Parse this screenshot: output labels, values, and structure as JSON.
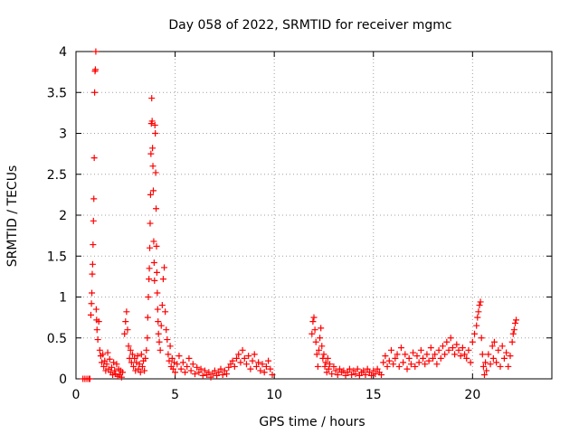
{
  "chart_data": {
    "type": "scatter",
    "title": "Day 058 of 2022, SRMTID for receiver mgmc",
    "xlabel": "GPS time / hours",
    "ylabel": "SRMTID / TECUs",
    "xlim": [
      0,
      24
    ],
    "ylim": [
      0,
      4
    ],
    "xticks": [
      0,
      5,
      10,
      15,
      20
    ],
    "yticks": [
      0,
      0.5,
      1,
      1.5,
      2,
      2.5,
      3,
      3.5,
      4
    ],
    "ytick_labels": [
      "0",
      "0.5",
      "1",
      "1.5",
      "2",
      "2.5",
      "3",
      "3.5",
      "4"
    ],
    "grid": true,
    "marker": "plus",
    "series": [
      {
        "name": "SRMTID",
        "color": "#ff0000",
        "points": [
          [
            0.35,
            0.0
          ],
          [
            0.45,
            0.0
          ],
          [
            0.55,
            0.0
          ],
          [
            0.65,
            0.0
          ],
          [
            0.7,
            0.0
          ],
          [
            0.75,
            0.78
          ],
          [
            0.78,
            0.92
          ],
          [
            0.8,
            1.05
          ],
          [
            0.82,
            1.28
          ],
          [
            0.84,
            1.4
          ],
          [
            0.86,
            1.64
          ],
          [
            0.88,
            1.93
          ],
          [
            0.9,
            2.2
          ],
          [
            0.92,
            2.7
          ],
          [
            0.94,
            3.5
          ],
          [
            0.96,
            3.76
          ],
          [
            0.98,
            3.78
          ],
          [
            1.0,
            4.0
          ],
          [
            1.02,
            0.85
          ],
          [
            1.04,
            0.72
          ],
          [
            1.06,
            0.6
          ],
          [
            1.1,
            0.48
          ],
          [
            1.15,
            0.7
          ],
          [
            1.2,
            0.35
          ],
          [
            1.25,
            0.28
          ],
          [
            1.3,
            0.2
          ],
          [
            1.35,
            0.3
          ],
          [
            1.4,
            0.15
          ],
          [
            1.45,
            0.22
          ],
          [
            1.5,
            0.1
          ],
          [
            1.55,
            0.18
          ],
          [
            1.6,
            0.32
          ],
          [
            1.65,
            0.12
          ],
          [
            1.7,
            0.24
          ],
          [
            1.75,
            0.08
          ],
          [
            1.8,
            0.14
          ],
          [
            1.85,
            0.05
          ],
          [
            1.9,
            0.2
          ],
          [
            1.95,
            0.1
          ],
          [
            2.0,
            0.06
          ],
          [
            2.05,
            0.18
          ],
          [
            2.1,
            0.03
          ],
          [
            2.15,
            0.12
          ],
          [
            2.2,
            0.05
          ],
          [
            2.25,
            0.1
          ],
          [
            2.3,
            0.02
          ],
          [
            2.35,
            0.08
          ],
          [
            2.45,
            0.55
          ],
          [
            2.5,
            0.7
          ],
          [
            2.55,
            0.82
          ],
          [
            2.6,
            0.6
          ],
          [
            2.65,
            0.4
          ],
          [
            2.7,
            0.25
          ],
          [
            2.75,
            0.35
          ],
          [
            2.8,
            0.2
          ],
          [
            2.85,
            0.3
          ],
          [
            2.9,
            0.15
          ],
          [
            2.95,
            0.25
          ],
          [
            3.0,
            0.1
          ],
          [
            3.05,
            0.2
          ],
          [
            3.1,
            0.28
          ],
          [
            3.15,
            0.12
          ],
          [
            3.2,
            0.18
          ],
          [
            3.25,
            0.08
          ],
          [
            3.3,
            0.3
          ],
          [
            3.35,
            0.15
          ],
          [
            3.4,
            0.22
          ],
          [
            3.45,
            0.1
          ],
          [
            3.5,
            0.25
          ],
          [
            3.55,
            0.35
          ],
          [
            3.6,
            0.5
          ],
          [
            3.62,
            0.75
          ],
          [
            3.65,
            1.0
          ],
          [
            3.68,
            1.22
          ],
          [
            3.7,
            1.35
          ],
          [
            3.72,
            1.6
          ],
          [
            3.74,
            1.9
          ],
          [
            3.76,
            2.25
          ],
          [
            3.78,
            2.75
          ],
          [
            3.8,
            3.12
          ],
          [
            3.82,
            3.43
          ],
          [
            3.84,
            3.15
          ],
          [
            3.86,
            2.82
          ],
          [
            3.88,
            2.6
          ],
          [
            3.9,
            2.3
          ],
          [
            3.92,
            1.68
          ],
          [
            3.94,
            1.42
          ],
          [
            3.96,
            1.2
          ],
          [
            3.98,
            3.1
          ],
          [
            4.0,
            3.0
          ],
          [
            4.02,
            2.52
          ],
          [
            4.04,
            2.08
          ],
          [
            4.06,
            1.62
          ],
          [
            4.08,
            1.3
          ],
          [
            4.1,
            1.05
          ],
          [
            4.12,
            0.85
          ],
          [
            4.14,
            0.7
          ],
          [
            4.16,
            0.55
          ],
          [
            4.2,
            0.45
          ],
          [
            4.25,
            0.35
          ],
          [
            4.3,
            0.65
          ],
          [
            4.35,
            0.9
          ],
          [
            4.4,
            1.22
          ],
          [
            4.45,
            1.36
          ],
          [
            4.5,
            0.82
          ],
          [
            4.55,
            0.6
          ],
          [
            4.6,
            0.48
          ],
          [
            4.65,
            0.3
          ],
          [
            4.7,
            0.22
          ],
          [
            4.75,
            0.4
          ],
          [
            4.8,
            0.15
          ],
          [
            4.85,
            0.25
          ],
          [
            4.9,
            0.12
          ],
          [
            4.95,
            0.2
          ],
          [
            5.0,
            0.08
          ],
          [
            5.1,
            0.18
          ],
          [
            5.2,
            0.28
          ],
          [
            5.3,
            0.12
          ],
          [
            5.4,
            0.2
          ],
          [
            5.5,
            0.08
          ],
          [
            5.6,
            0.15
          ],
          [
            5.7,
            0.25
          ],
          [
            5.8,
            0.1
          ],
          [
            5.9,
            0.18
          ],
          [
            6.0,
            0.06
          ],
          [
            6.1,
            0.14
          ],
          [
            6.2,
            0.08
          ],
          [
            6.3,
            0.12
          ],
          [
            6.4,
            0.04
          ],
          [
            6.5,
            0.1
          ],
          [
            6.6,
            0.05
          ],
          [
            6.7,
            0.08
          ],
          [
            6.8,
            0.02
          ],
          [
            6.9,
            0.06
          ],
          [
            7.0,
            0.1
          ],
          [
            7.1,
            0.04
          ],
          [
            7.2,
            0.08
          ],
          [
            7.3,
            0.12
          ],
          [
            7.4,
            0.05
          ],
          [
            7.5,
            0.1
          ],
          [
            7.6,
            0.06
          ],
          [
            7.7,
            0.14
          ],
          [
            7.8,
            0.18
          ],
          [
            7.9,
            0.22
          ],
          [
            8.0,
            0.15
          ],
          [
            8.1,
            0.25
          ],
          [
            8.2,
            0.3
          ],
          [
            8.3,
            0.2
          ],
          [
            8.4,
            0.35
          ],
          [
            8.5,
            0.25
          ],
          [
            8.6,
            0.18
          ],
          [
            8.7,
            0.28
          ],
          [
            8.8,
            0.12
          ],
          [
            8.9,
            0.22
          ],
          [
            9.0,
            0.3
          ],
          [
            9.1,
            0.15
          ],
          [
            9.2,
            0.2
          ],
          [
            9.3,
            0.1
          ],
          [
            9.4,
            0.18
          ],
          [
            9.5,
            0.08
          ],
          [
            9.6,
            0.15
          ],
          [
            9.7,
            0.22
          ],
          [
            9.8,
            0.12
          ],
          [
            9.9,
            0.05
          ],
          [
            11.9,
            0.55
          ],
          [
            11.95,
            0.7
          ],
          [
            12.0,
            0.75
          ],
          [
            12.05,
            0.6
          ],
          [
            12.1,
            0.45
          ],
          [
            12.15,
            0.3
          ],
          [
            12.2,
            0.15
          ],
          [
            12.25,
            0.35
          ],
          [
            12.3,
            0.5
          ],
          [
            12.35,
            0.62
          ],
          [
            12.4,
            0.4
          ],
          [
            12.45,
            0.25
          ],
          [
            12.5,
            0.3
          ],
          [
            12.55,
            0.15
          ],
          [
            12.6,
            0.2
          ],
          [
            12.65,
            0.08
          ],
          [
            12.7,
            0.25
          ],
          [
            12.75,
            0.12
          ],
          [
            12.8,
            0.18
          ],
          [
            12.9,
            0.06
          ],
          [
            13.0,
            0.15
          ],
          [
            13.1,
            0.1
          ],
          [
            13.2,
            0.05
          ],
          [
            13.3,
            0.12
          ],
          [
            13.4,
            0.08
          ],
          [
            13.5,
            0.1
          ],
          [
            13.6,
            0.04
          ],
          [
            13.7,
            0.08
          ],
          [
            13.8,
            0.12
          ],
          [
            13.9,
            0.05
          ],
          [
            14.0,
            0.1
          ],
          [
            14.1,
            0.06
          ],
          [
            14.2,
            0.12
          ],
          [
            14.3,
            0.04
          ],
          [
            14.4,
            0.08
          ],
          [
            14.5,
            0.1
          ],
          [
            14.6,
            0.05
          ],
          [
            14.7,
            0.12
          ],
          [
            14.8,
            0.08
          ],
          [
            14.9,
            0.04
          ],
          [
            15.0,
            0.1
          ],
          [
            15.1,
            0.06
          ],
          [
            15.2,
            0.12
          ],
          [
            15.3,
            0.08
          ],
          [
            15.4,
            0.05
          ],
          [
            15.5,
            0.2
          ],
          [
            15.6,
            0.28
          ],
          [
            15.7,
            0.15
          ],
          [
            15.8,
            0.22
          ],
          [
            15.9,
            0.35
          ],
          [
            16.0,
            0.18
          ],
          [
            16.1,
            0.25
          ],
          [
            16.2,
            0.3
          ],
          [
            16.3,
            0.15
          ],
          [
            16.4,
            0.38
          ],
          [
            16.5,
            0.2
          ],
          [
            16.6,
            0.3
          ],
          [
            16.7,
            0.12
          ],
          [
            16.8,
            0.25
          ],
          [
            16.9,
            0.18
          ],
          [
            17.0,
            0.32
          ],
          [
            17.1,
            0.15
          ],
          [
            17.2,
            0.28
          ],
          [
            17.3,
            0.2
          ],
          [
            17.4,
            0.35
          ],
          [
            17.5,
            0.25
          ],
          [
            17.6,
            0.18
          ],
          [
            17.7,
            0.3
          ],
          [
            17.8,
            0.22
          ],
          [
            17.9,
            0.38
          ],
          [
            18.0,
            0.25
          ],
          [
            18.1,
            0.3
          ],
          [
            18.2,
            0.18
          ],
          [
            18.3,
            0.35
          ],
          [
            18.4,
            0.25
          ],
          [
            18.5,
            0.4
          ],
          [
            18.6,
            0.3
          ],
          [
            18.7,
            0.45
          ],
          [
            18.8,
            0.35
          ],
          [
            18.9,
            0.5
          ],
          [
            19.0,
            0.38
          ],
          [
            19.1,
            0.3
          ],
          [
            19.2,
            0.42
          ],
          [
            19.3,
            0.35
          ],
          [
            19.4,
            0.28
          ],
          [
            19.5,
            0.38
          ],
          [
            19.6,
            0.3
          ],
          [
            19.7,
            0.25
          ],
          [
            19.8,
            0.35
          ],
          [
            19.9,
            0.2
          ],
          [
            20.0,
            0.45
          ],
          [
            20.1,
            0.55
          ],
          [
            20.2,
            0.65
          ],
          [
            20.25,
            0.75
          ],
          [
            20.3,
            0.82
          ],
          [
            20.35,
            0.9
          ],
          [
            20.4,
            0.94
          ],
          [
            20.45,
            0.5
          ],
          [
            20.5,
            0.3
          ],
          [
            20.55,
            0.15
          ],
          [
            20.6,
            0.05
          ],
          [
            20.65,
            0.2
          ],
          [
            20.7,
            0.1
          ],
          [
            20.8,
            0.3
          ],
          [
            20.9,
            0.18
          ],
          [
            21.0,
            0.4
          ],
          [
            21.05,
            0.25
          ],
          [
            21.1,
            0.45
          ],
          [
            21.2,
            0.2
          ],
          [
            21.3,
            0.35
          ],
          [
            21.4,
            0.15
          ],
          [
            21.5,
            0.4
          ],
          [
            21.6,
            0.25
          ],
          [
            21.7,
            0.32
          ],
          [
            21.8,
            0.15
          ],
          [
            21.9,
            0.28
          ],
          [
            22.0,
            0.45
          ],
          [
            22.05,
            0.55
          ],
          [
            22.1,
            0.6
          ],
          [
            22.15,
            0.68
          ],
          [
            22.2,
            0.72
          ]
        ]
      }
    ]
  }
}
